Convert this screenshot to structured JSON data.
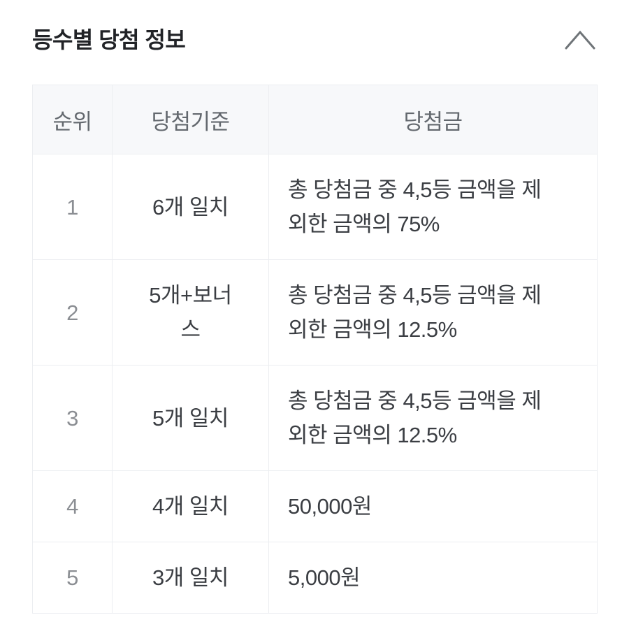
{
  "panel": {
    "title": "등수별 당첨 정보",
    "collapse_icon": "chevron-up",
    "collapsed": false
  },
  "colors": {
    "title_text": "#212327",
    "body_text": "#3b3e43",
    "muted_rank_text": "#8b8e93",
    "header_text": "#63686e",
    "header_bg": "#f7f8fa",
    "border": "#eceef1",
    "chevron": "#6f7478",
    "page_bg": "#ffffff"
  },
  "table": {
    "columns": [
      {
        "key": "rank",
        "label": "순위"
      },
      {
        "key": "criteria",
        "label": "당첨기준"
      },
      {
        "key": "prize",
        "label": "당첨금"
      }
    ],
    "rows": [
      {
        "rank": "1",
        "criteria": "6개 일치",
        "prize": "총 당첨금 중 4,5등 금액을 제\n외한 금액의 75%"
      },
      {
        "rank": "2",
        "criteria": "5개+보너\n스",
        "prize": "총 당첨금 중 4,5등 금액을 제\n외한 금액의 12.5%"
      },
      {
        "rank": "3",
        "criteria": "5개 일치",
        "prize": "총 당첨금 중 4,5등 금액을 제\n외한 금액의 12.5%"
      },
      {
        "rank": "4",
        "criteria": "4개 일치",
        "prize": "50,000원"
      },
      {
        "rank": "5",
        "criteria": "3개 일치",
        "prize": "5,000원"
      }
    ]
  }
}
